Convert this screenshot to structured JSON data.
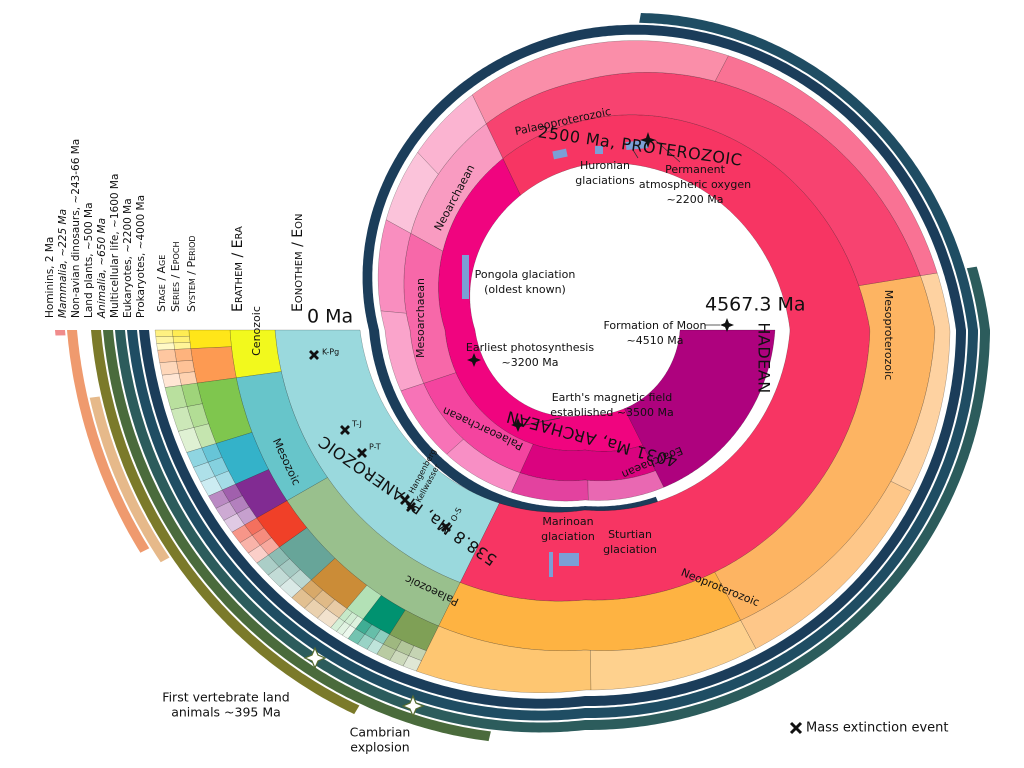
{
  "scale": {
    "start": "0 Ma",
    "end": "4567.3 Ma"
  },
  "columns": [
    "Stage / Age",
    "Series / Epoch",
    "System / Period",
    "Erathem / Era",
    "Eonothem / Eon"
  ],
  "eons": [
    "538.8 Ma, PHANEROZOIC",
    "2500 Ma, PROTEROZOIC",
    "4031 Ma, ARCHAEAN",
    "HADEAN"
  ],
  "eras": [
    "Cenozoic",
    "Mesozoic",
    "Palaeozoic",
    "Neoproterozoic",
    "Mesoproterozoic",
    "Palaeoproterozoic",
    "Neoarchaean",
    "Mesoarchaean",
    "Palaeoarchaean",
    "Eoarchaean"
  ],
  "life": [
    "Hominins, 2 Ma",
    "Mammalia, ~225 Ma",
    "Non-avian dinosaurs, ~243-66 Ma",
    "Land plants, ~500 Ma",
    "Animalia, ~650 Ma",
    "Multicellular life, ~1600 Ma",
    "Eukaryotes, ~2200 Ma",
    "Prokaryotes, ~4000 Ma"
  ],
  "extinctions": [
    "K-Pg",
    "T-J",
    "P-T",
    "Hangenberg",
    "Kellwasser",
    "O-S"
  ],
  "events": [
    [
      "Huronian",
      "glaciations"
    ],
    [
      "Permanent",
      "atmospheric oxygen",
      "~2200 Ma"
    ],
    [
      "Pongola glaciation",
      "(oldest known)"
    ],
    [
      "Earliest photosynthesis",
      "~3200 Ma"
    ],
    [
      "Earth's magnetic field",
      "established ~3500 Ma"
    ],
    [
      "Formation of Moon",
      "~4510 Ma"
    ],
    [
      "Marinoan",
      "glaciation"
    ],
    [
      "Sturtian",
      "glaciation"
    ],
    [
      "First vertebrate land",
      "animals ~395 Ma"
    ],
    [
      "Cambrian",
      "explosion"
    ]
  ],
  "legend": "Mass extinction event"
}
